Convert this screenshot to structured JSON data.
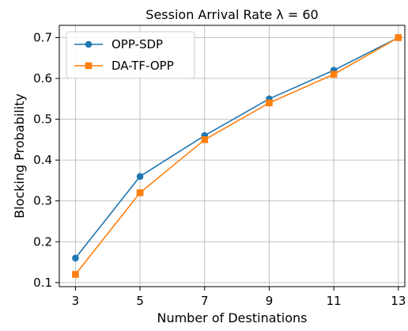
{
  "chart_data": {
    "type": "line",
    "title": "Session Arrival Rate λ = 60",
    "xlabel": "Number of Destinations",
    "ylabel": "Blocking Probability",
    "x": [
      3,
      5,
      7,
      9,
      11,
      13
    ],
    "xticks": [
      "3",
      "5",
      "7",
      "9",
      "11",
      "13"
    ],
    "yticks": [
      "0.1",
      "0.2",
      "0.3",
      "0.4",
      "0.5",
      "0.6",
      "0.7"
    ],
    "ytick_values": [
      0.1,
      0.2,
      0.3,
      0.4,
      0.5,
      0.6,
      0.7
    ],
    "xlim": [
      2.5,
      13.2
    ],
    "ylim": [
      0.09,
      0.73
    ],
    "grid": true,
    "legend_position": "top-left",
    "series": [
      {
        "name": "OPP-SDP",
        "values": [
          0.16,
          0.36,
          0.46,
          0.55,
          0.62,
          0.7
        ],
        "color": "#1f77b4",
        "marker": "circle"
      },
      {
        "name": "DA-TF-OPP",
        "values": [
          0.12,
          0.32,
          0.45,
          0.54,
          0.61,
          0.7
        ],
        "color": "#ff7f0e",
        "marker": "square"
      }
    ]
  }
}
